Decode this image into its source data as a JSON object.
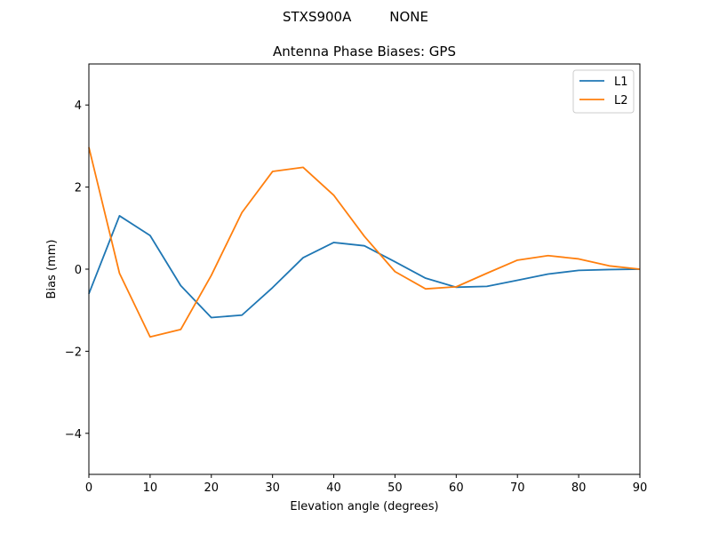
{
  "suptitle": "STXS900A         NONE",
  "chart_data": {
    "type": "line",
    "title": "Antenna Phase Biases: GPS",
    "xlabel": "Elevation angle (degrees)",
    "ylabel": "Bias (mm)",
    "xlim": [
      0,
      90
    ],
    "ylim": [
      -5,
      5
    ],
    "xticks": [
      0,
      10,
      20,
      30,
      40,
      50,
      60,
      70,
      80,
      90
    ],
    "yticks": [
      -4,
      -2,
      0,
      2,
      4
    ],
    "xtick_labels": [
      "0",
      "10",
      "20",
      "30",
      "40",
      "50",
      "60",
      "70",
      "80",
      "90"
    ],
    "ytick_labels": [
      "−4",
      "−2",
      "0",
      "2",
      "4"
    ],
    "grid": false,
    "legend_position": "top-right",
    "x": [
      0,
      5,
      10,
      15,
      20,
      25,
      30,
      35,
      40,
      45,
      50,
      55,
      60,
      65,
      70,
      75,
      80,
      85,
      90
    ],
    "series": [
      {
        "name": "L1",
        "color": "#1f77b4",
        "values": [
          -0.6,
          1.3,
          0.82,
          -0.4,
          -1.18,
          -1.12,
          -0.45,
          0.28,
          0.65,
          0.57,
          0.18,
          -0.22,
          -0.44,
          -0.42,
          -0.27,
          -0.12,
          -0.03,
          -0.01,
          0.0
        ]
      },
      {
        "name": "L2",
        "color": "#ff7f0e",
        "values": [
          2.97,
          -0.1,
          -1.65,
          -1.47,
          -0.15,
          1.38,
          2.38,
          2.48,
          1.8,
          0.8,
          -0.06,
          -0.48,
          -0.43,
          -0.1,
          0.22,
          0.33,
          0.25,
          0.08,
          0.0
        ]
      }
    ]
  }
}
